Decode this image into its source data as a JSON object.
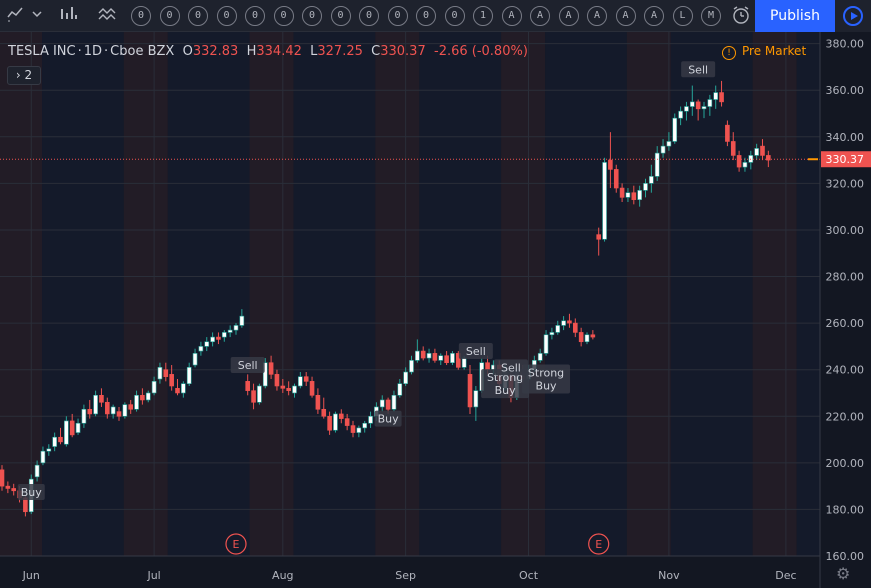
{
  "toolbar": {
    "icons": [
      "chevron-down-icon",
      "indicators-icon",
      "compare-icon",
      "alert-clock-icon"
    ],
    "event_pills": [
      "0",
      "0",
      "0",
      "0",
      "0",
      "0",
      "0",
      "0",
      "0",
      "0",
      "0",
      "0",
      "1",
      "A",
      "A",
      "A",
      "A",
      "A",
      "A",
      "L",
      "M"
    ],
    "publish_label": "Publish",
    "play_icon": "play-icon"
  },
  "legend": {
    "symbol": "TESLA INC",
    "interval": "1D",
    "exchange": "Cboe BZX",
    "open_label": "O",
    "open": "332.83",
    "high_label": "H",
    "high": "334.42",
    "low_label": "L",
    "low": "327.25",
    "close_label": "C",
    "close": "330.37",
    "change": "-2.66 (-0.80%)",
    "collapse_label": "2"
  },
  "market_status": "Pre Market",
  "colors": {
    "background": "#131722",
    "up": "#26a69a",
    "down": "#ef5350",
    "premarket": "#ff9800",
    "accent": "#2962ff"
  },
  "chart_data": {
    "type": "candlestick",
    "ylim": [
      160,
      385
    ],
    "y_ticks": [
      160,
      180,
      200,
      220,
      240,
      260,
      280,
      300,
      320,
      340,
      360,
      380
    ],
    "y_tick_labels": [
      "160.00",
      "180.00",
      "200.00",
      "220.00",
      "240.00",
      "260.00",
      "280.00",
      "300.00",
      "320.00",
      "340.00",
      "360.00",
      "380.00"
    ],
    "x_tick_labels": [
      {
        "label": "Jun",
        "index": 5
      },
      {
        "label": "Jul",
        "index": 26
      },
      {
        "label": "Aug",
        "index": 48
      },
      {
        "label": "Sep",
        "index": 69
      },
      {
        "label": "Oct",
        "index": 90
      },
      {
        "label": "Nov",
        "index": 114
      },
      {
        "label": "Dec",
        "index": 134
      }
    ],
    "last_price": 330.37,
    "last_price_label": "330.37",
    "candles": [
      [
        197,
        199,
        188,
        190
      ],
      [
        190,
        192,
        187,
        189
      ],
      [
        189,
        191,
        186,
        188
      ],
      [
        188,
        190,
        183,
        185
      ],
      [
        185,
        186,
        177,
        179
      ],
      [
        179,
        195,
        178,
        193
      ],
      [
        194,
        201,
        192,
        199
      ],
      [
        200,
        207,
        199,
        205
      ],
      [
        205,
        208,
        203,
        206
      ],
      [
        207,
        213,
        205,
        211
      ],
      [
        211,
        215,
        208,
        209
      ],
      [
        208,
        220,
        207,
        218
      ],
      [
        218,
        221,
        211,
        212
      ],
      [
        213,
        219,
        212,
        217
      ],
      [
        217,
        225,
        215,
        223
      ],
      [
        223,
        227,
        219,
        221
      ],
      [
        221,
        231,
        220,
        229
      ],
      [
        229,
        232,
        224,
        226
      ],
      [
        226,
        228,
        219,
        221
      ],
      [
        221,
        225,
        219,
        224
      ],
      [
        222,
        224,
        218,
        220
      ],
      [
        220,
        226,
        219,
        225
      ],
      [
        225,
        227,
        221,
        223
      ],
      [
        223,
        231,
        222,
        229
      ],
      [
        229,
        232,
        225,
        227
      ],
      [
        227,
        231,
        226,
        230
      ],
      [
        230,
        237,
        229,
        235
      ],
      [
        236,
        243,
        234,
        241
      ],
      [
        240,
        243,
        235,
        237
      ],
      [
        238,
        242,
        231,
        233
      ],
      [
        232,
        236,
        229,
        230
      ],
      [
        230,
        235,
        228,
        234
      ],
      [
        234,
        243,
        233,
        241
      ],
      [
        242,
        249,
        241,
        247
      ],
      [
        248,
        252,
        246,
        250
      ],
      [
        250,
        254,
        248,
        252
      ],
      [
        252,
        256,
        250,
        254
      ],
      [
        254,
        256,
        251,
        253
      ],
      [
        254,
        257,
        252,
        256
      ],
      [
        256,
        259,
        254,
        257
      ],
      [
        257,
        260,
        255,
        259
      ],
      [
        259,
        266,
        258,
        263
      ],
      [
        235,
        238,
        229,
        231
      ],
      [
        231,
        234,
        223,
        226
      ],
      [
        226,
        234,
        225,
        233
      ],
      [
        233,
        245,
        232,
        243
      ],
      [
        243,
        246,
        236,
        238
      ],
      [
        238,
        240,
        231,
        233
      ],
      [
        233,
        236,
        230,
        232
      ],
      [
        232,
        235,
        229,
        231
      ],
      [
        230,
        234,
        228,
        233
      ],
      [
        233,
        239,
        232,
        237
      ],
      [
        237,
        239,
        233,
        235
      ],
      [
        235,
        237,
        228,
        229
      ],
      [
        229,
        232,
        221,
        223
      ],
      [
        223,
        228,
        219,
        220
      ],
      [
        220,
        222,
        212,
        214
      ],
      [
        214,
        222,
        213,
        221
      ],
      [
        221,
        223,
        217,
        219
      ],
      [
        219,
        221,
        214,
        216
      ],
      [
        216,
        218,
        211,
        213
      ],
      [
        213,
        216,
        211,
        215
      ],
      [
        215,
        218,
        213,
        217
      ],
      [
        217,
        222,
        215,
        220
      ],
      [
        220,
        226,
        218,
        224
      ],
      [
        224,
        229,
        222,
        227
      ],
      [
        227,
        228,
        221,
        223
      ],
      [
        223,
        231,
        222,
        229
      ],
      [
        229,
        236,
        228,
        234
      ],
      [
        234,
        241,
        233,
        239
      ],
      [
        239,
        246,
        238,
        244
      ],
      [
        244,
        253,
        243,
        248
      ],
      [
        248,
        250,
        244,
        245
      ],
      [
        245,
        249,
        243,
        247
      ],
      [
        247,
        249,
        243,
        244
      ],
      [
        244,
        247,
        242,
        246
      ],
      [
        246,
        248,
        242,
        243
      ],
      [
        243,
        248,
        242,
        247
      ],
      [
        247,
        248,
        240,
        241
      ],
      [
        241,
        246,
        240,
        245
      ],
      [
        238,
        242,
        221,
        224
      ],
      [
        224,
        233,
        218,
        231
      ],
      [
        231,
        245,
        230,
        243
      ],
      [
        243,
        246,
        238,
        240
      ],
      [
        240,
        244,
        238,
        242
      ],
      [
        242,
        244,
        232,
        234
      ],
      [
        232,
        242,
        231,
        240
      ],
      [
        238,
        240,
        226,
        228
      ],
      [
        228,
        241,
        227,
        239
      ],
      [
        239,
        242,
        234,
        236
      ],
      [
        236,
        242,
        235,
        240
      ],
      [
        240,
        246,
        239,
        244
      ],
      [
        244,
        249,
        243,
        247
      ],
      [
        247,
        257,
        246,
        255
      ],
      [
        255,
        258,
        253,
        256
      ],
      [
        256,
        261,
        255,
        259
      ],
      [
        259,
        263,
        257,
        261
      ],
      [
        261,
        264,
        258,
        260
      ],
      [
        260,
        262,
        254,
        256
      ],
      [
        256,
        258,
        250,
        252
      ],
      [
        252,
        256,
        251,
        255
      ],
      [
        255,
        257,
        253,
        254
      ],
      [
        298,
        301,
        289,
        296
      ],
      [
        296,
        331,
        295,
        329
      ],
      [
        330,
        342,
        318,
        326
      ],
      [
        326,
        328,
        316,
        318
      ],
      [
        318,
        320,
        312,
        314
      ],
      [
        314,
        318,
        312,
        316
      ],
      [
        316,
        319,
        311,
        313
      ],
      [
        313,
        319,
        310,
        317
      ],
      [
        317,
        322,
        314,
        320
      ],
      [
        320,
        328,
        316,
        323
      ],
      [
        323,
        336,
        321,
        333
      ],
      [
        333,
        339,
        331,
        336
      ],
      [
        336,
        342,
        334,
        338
      ],
      [
        338,
        350,
        337,
        348
      ],
      [
        348,
        353,
        345,
        351
      ],
      [
        351,
        355,
        347,
        353
      ],
      [
        353,
        362,
        349,
        355
      ],
      [
        355,
        356,
        347,
        352
      ],
      [
        352,
        355,
        348,
        353
      ],
      [
        353,
        358,
        349,
        356
      ],
      [
        356,
        362,
        352,
        359
      ],
      [
        359,
        364,
        353,
        355
      ],
      [
        345,
        347,
        336,
        338
      ],
      [
        338,
        342,
        330,
        332
      ],
      [
        332,
        334,
        325,
        327
      ],
      [
        327,
        331,
        325,
        329
      ],
      [
        329,
        334,
        326,
        332
      ],
      [
        332,
        337,
        330,
        335
      ],
      [
        336,
        339,
        330,
        332
      ],
      [
        332,
        334,
        327,
        330
      ]
    ],
    "signals": [
      {
        "label": "Buy",
        "index": 5,
        "price": 187.5
      },
      {
        "label": "Sell",
        "index": 42,
        "price": 242
      },
      {
        "label": "Buy",
        "index": 66,
        "price": 219
      },
      {
        "label": "Sell",
        "index": 81,
        "price": 248
      },
      {
        "label": "Strong Buy",
        "index": 86,
        "price": 234
      },
      {
        "label": "Sell",
        "index": 87,
        "price": 241
      },
      {
        "label": "Strong Buy",
        "index": 93,
        "price": 236
      },
      {
        "label": "Sell",
        "index": 119,
        "price": 369
      }
    ],
    "events": [
      {
        "label": "E",
        "index": 40
      },
      {
        "label": "E",
        "index": 102
      }
    ]
  }
}
